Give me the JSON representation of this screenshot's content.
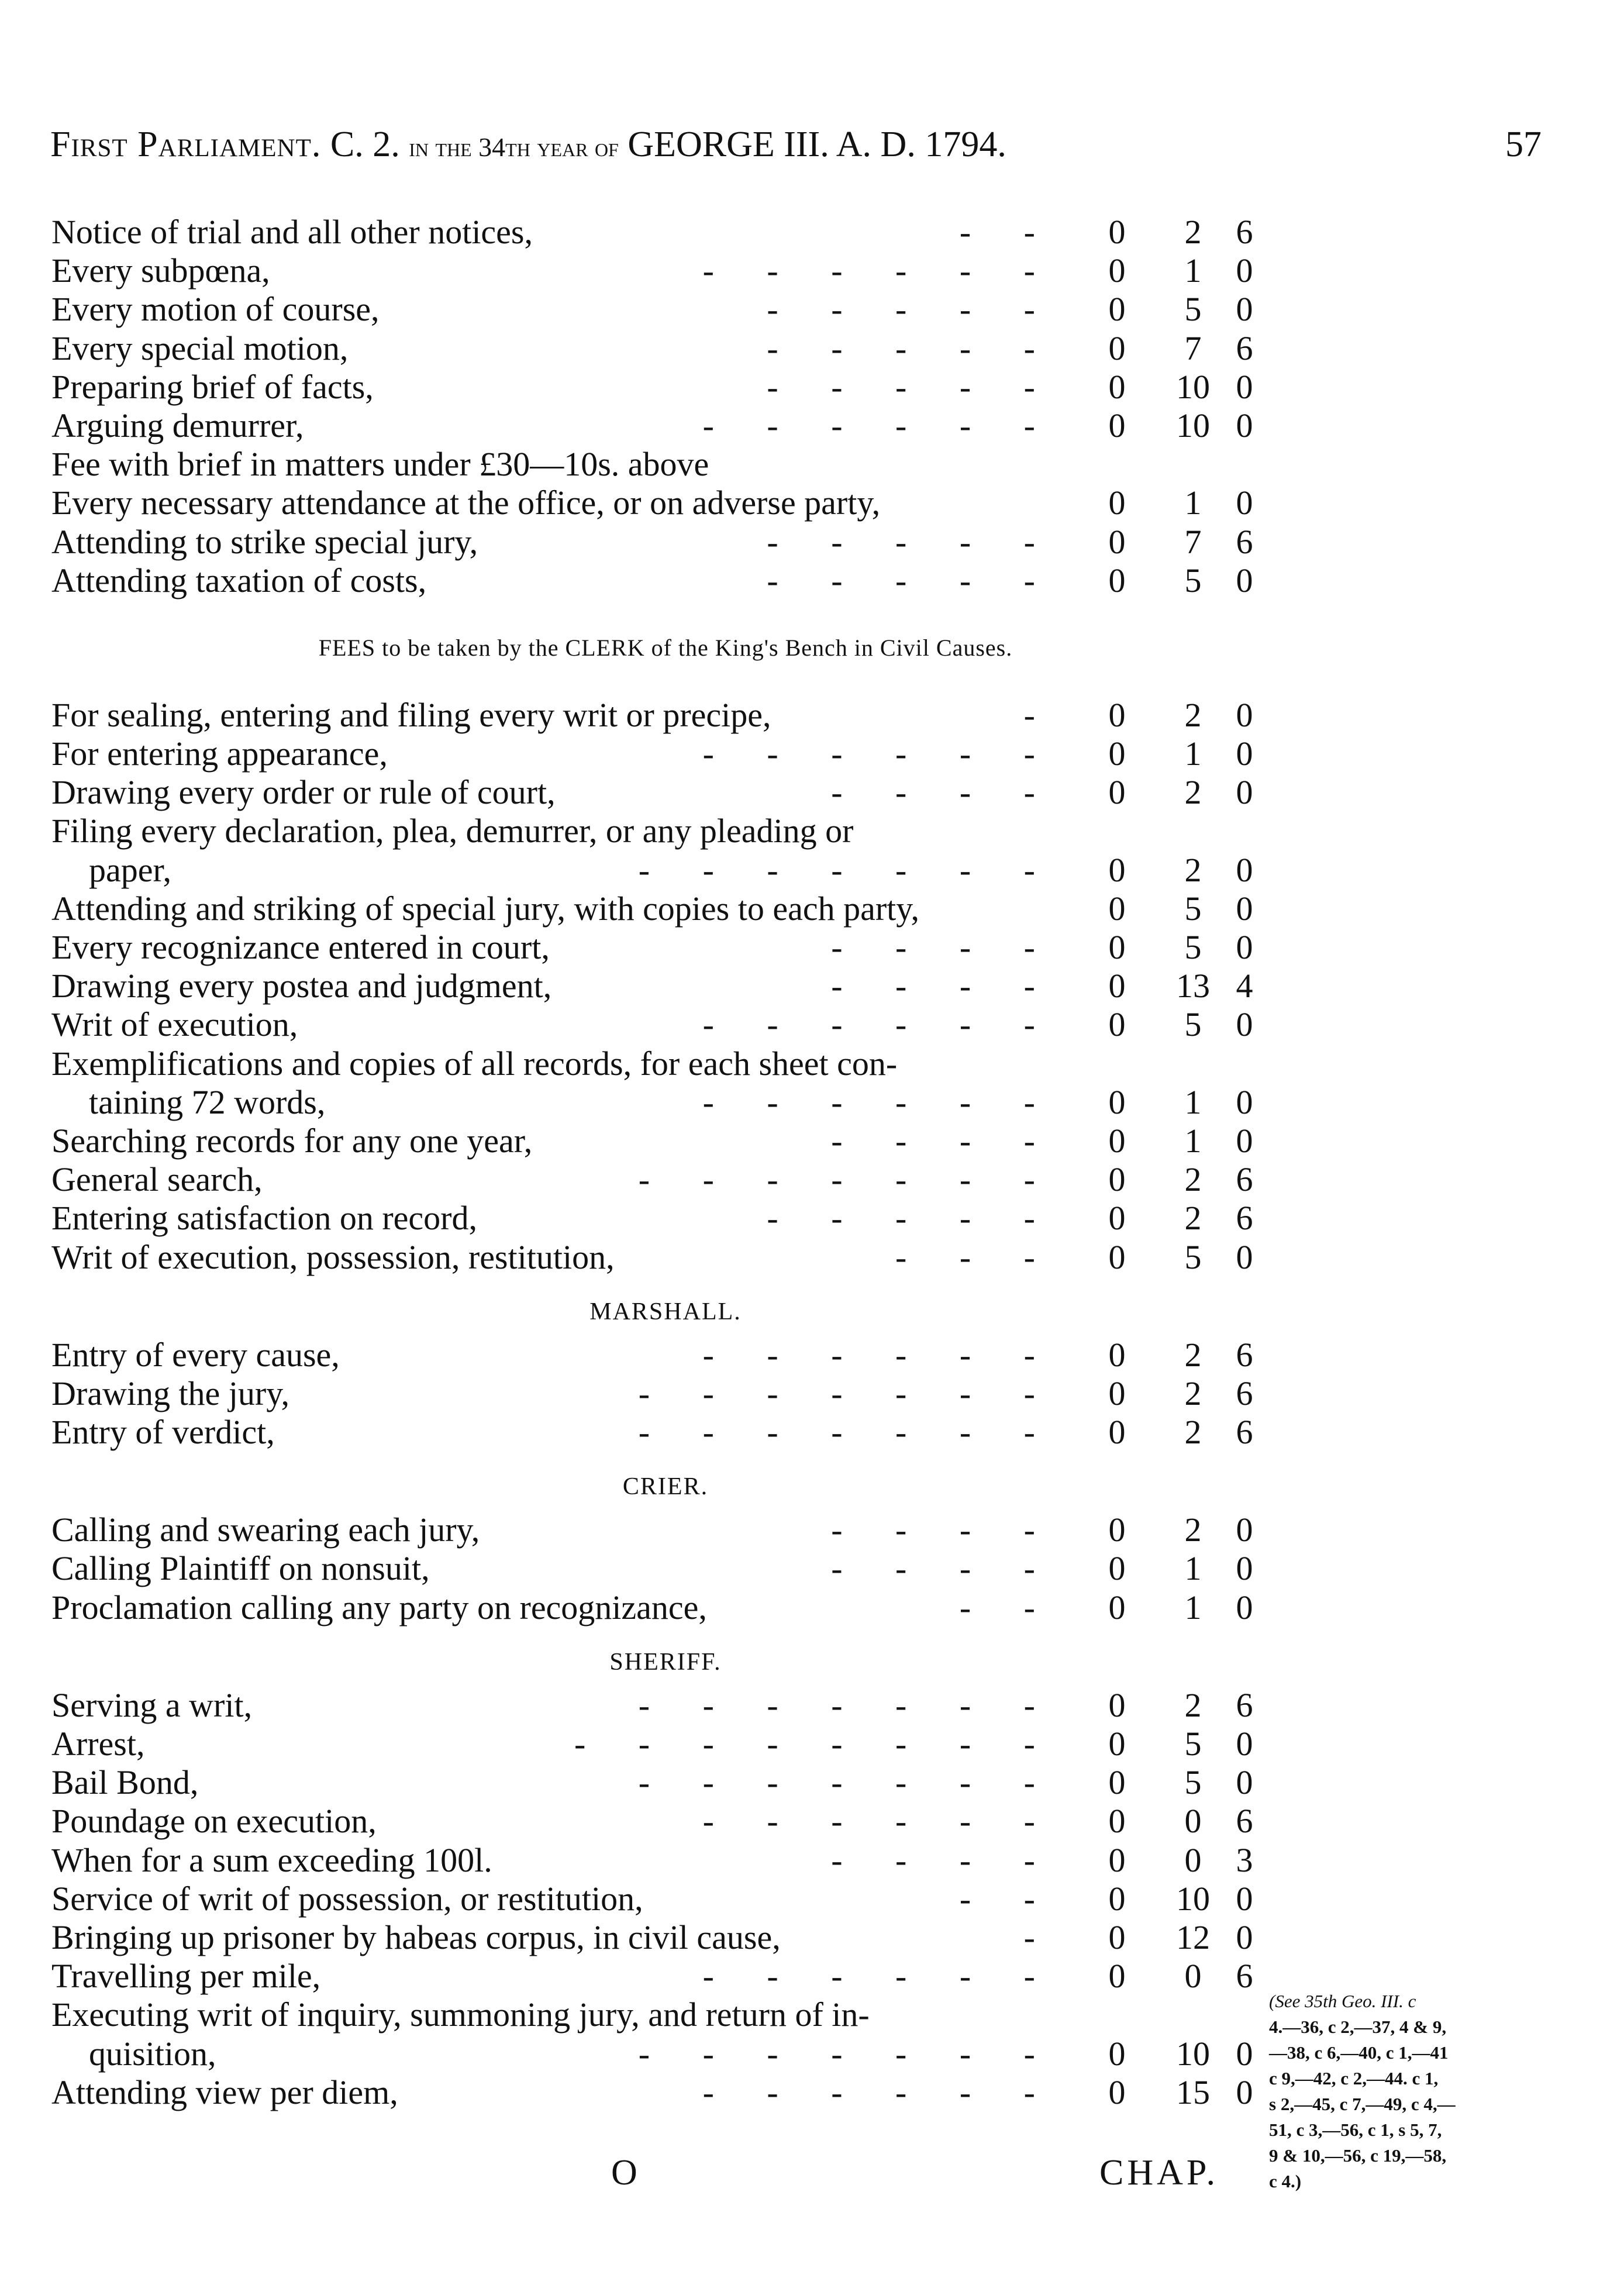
{
  "header": {
    "left": "First Parliament.",
    "chapter": "C. 2.",
    "in_the_year": "in the 34th year of",
    "reign": "GEORGE III. A. D. 1794.",
    "page_number": "57"
  },
  "sections": [
    {
      "heading": "",
      "rows": [
        {
          "label": "Notice of trial and all other notices,",
          "leaders": "- -",
          "l": "0",
          "s": "2",
          "d": "6"
        },
        {
          "label": "Every subpœna,",
          "leaders": "- - - - - -",
          "l": "0",
          "s": "1",
          "d": "0"
        },
        {
          "label": "Every motion of course,",
          "leaders": "- - - - -",
          "l": "0",
          "s": "5",
          "d": "0"
        },
        {
          "label": "Every special motion,",
          "leaders": "- - - - -",
          "l": "0",
          "s": "7",
          "d": "6"
        },
        {
          "label": "Preparing brief of facts,",
          "leaders": "- - - - -",
          "l": "0",
          "s": "10",
          "d": "0"
        },
        {
          "label": "Arguing demurrer,",
          "leaders": "- - - - - -",
          "l": "0",
          "s": "10",
          "d": "0"
        },
        {
          "label": "Fee with brief in matters under £30—10s. above",
          "leaders": "",
          "l": "",
          "s": "",
          "d": ""
        },
        {
          "label": "Every necessary attendance at the office, or on adverse party,",
          "leaders": "",
          "l": "0",
          "s": "1",
          "d": "0"
        },
        {
          "label": "Attending to strike special jury,",
          "leaders": "- - - - -",
          "l": "0",
          "s": "7",
          "d": "6"
        },
        {
          "label": "Attending taxation of costs,",
          "leaders": "- - - - -",
          "l": "0",
          "s": "5",
          "d": "0"
        }
      ]
    },
    {
      "heading": "FEES to be taken by the CLERK of the King's Bench in Civil Causes.",
      "rows": [
        {
          "label": "For sealing, entering and filing every writ or precipe,",
          "leaders": "-",
          "l": "0",
          "s": "2",
          "d": "0"
        },
        {
          "label": "For entering appearance,",
          "leaders": "- - - - - -",
          "l": "0",
          "s": "1",
          "d": "0"
        },
        {
          "label": "Drawing every order or rule of court,",
          "leaders": "- - - -",
          "l": "0",
          "s": "2",
          "d": "0"
        },
        {
          "label": "Filing every declaration, plea, demurrer, or any pleading or",
          "leaders": "",
          "l": "",
          "s": "",
          "d": ""
        },
        {
          "label": "paper,",
          "cont": true,
          "leaders": "- - - - - - -",
          "l": "0",
          "s": "2",
          "d": "0"
        },
        {
          "label": "Attending and striking of special jury, with copies to each party,",
          "leaders": "",
          "l": "0",
          "s": "5",
          "d": "0"
        },
        {
          "label": "Every recognizance entered in court,",
          "leaders": "- - - -",
          "l": "0",
          "s": "5",
          "d": "0"
        },
        {
          "label": "Drawing every postea and judgment,",
          "leaders": "- - - -",
          "l": "0",
          "s": "13",
          "d": "4"
        },
        {
          "label": "Writ of execution,",
          "leaders": "- - - - - -",
          "l": "0",
          "s": "5",
          "d": "0"
        },
        {
          "label": "Exemplifications and copies of all records, for each sheet con-",
          "leaders": "",
          "l": "",
          "s": "",
          "d": ""
        },
        {
          "label": "taining 72 words,",
          "cont": true,
          "leaders": "- - - - - -",
          "l": "0",
          "s": "1",
          "d": "0"
        },
        {
          "label": "Searching records for any one year,",
          "leaders": "- - - -",
          "l": "0",
          "s": "1",
          "d": "0"
        },
        {
          "label": "General search,",
          "leaders": "- - - - - - -",
          "l": "0",
          "s": "2",
          "d": "6"
        },
        {
          "label": "Entering satisfaction on record,",
          "leaders": "- - - - -",
          "l": "0",
          "s": "2",
          "d": "6"
        },
        {
          "label": "Writ of execution, possession, restitution,",
          "leaders": "- - -",
          "l": "0",
          "s": "5",
          "d": "0"
        }
      ]
    },
    {
      "heading": "MARSHALL.",
      "rows": [
        {
          "label": "Entry of every cause,",
          "leaders": "- - - - - -",
          "l": "0",
          "s": "2",
          "d": "6"
        },
        {
          "label": "Drawing the jury,",
          "leaders": "- - - - - - -",
          "l": "0",
          "s": "2",
          "d": "6"
        },
        {
          "label": "Entry of verdict,",
          "leaders": "- - - - - - -",
          "l": "0",
          "s": "2",
          "d": "6"
        }
      ]
    },
    {
      "heading": "CRIER.",
      "rows": [
        {
          "label": "Calling and swearing each jury,",
          "leaders": "- - - -",
          "l": "0",
          "s": "2",
          "d": "0"
        },
        {
          "label": "Calling Plaintiff on nonsuit,",
          "leaders": "- - - -",
          "l": "0",
          "s": "1",
          "d": "0"
        },
        {
          "label": "Proclamation calling any party on recognizance,",
          "leaders": "- -",
          "l": "0",
          "s": "1",
          "d": "0"
        }
      ]
    },
    {
      "heading": "SHERIFF.",
      "rows": [
        {
          "label": "Serving a writ,",
          "leaders": "- - - - - - -",
          "l": "0",
          "s": "2",
          "d": "6"
        },
        {
          "label": "Arrest,",
          "leaders": "- - - - - - - -",
          "l": "0",
          "s": "5",
          "d": "0"
        },
        {
          "label": "Bail Bond,",
          "leaders": "- - - - - - -",
          "l": "0",
          "s": "5",
          "d": "0"
        },
        {
          "label": "Poundage on execution,",
          "leaders": "- - - - - -",
          "l": "0",
          "s": "0",
          "d": "6"
        },
        {
          "label": "When for a sum exceeding 100l.",
          "leaders": "- - - -",
          "l": "0",
          "s": "0",
          "d": "3"
        },
        {
          "label": "Service of writ of possession, or restitution,",
          "leaders": "- -",
          "l": "0",
          "s": "10",
          "d": "0"
        },
        {
          "label": "Bringing up prisoner by habeas corpus, in civil cause,",
          "leaders": "-",
          "l": "0",
          "s": "12",
          "d": "0"
        },
        {
          "label": "Travelling per mile,",
          "leaders": "- - - - - -",
          "l": "0",
          "s": "0",
          "d": "6"
        },
        {
          "label": "Executing writ of inquiry, summoning jury, and return of in-",
          "leaders": "",
          "l": "",
          "s": "",
          "d": ""
        },
        {
          "label": "quisition,",
          "cont": true,
          "leaders": "- - - - - - -",
          "l": "0",
          "s": "10",
          "d": "0"
        },
        {
          "label": "Attending view per diem,",
          "leaders": "- - - - - -",
          "l": "0",
          "s": "15",
          "d": "0"
        }
      ]
    }
  ],
  "margin_note": {
    "intro": "(See 35th Geo. III. c",
    "lines": [
      "4.—36, c 2,—37, 4 & 9,",
      "—38, c 6,—40, c 1,—41",
      "c 9,—42, c 2,—44. c 1,",
      "s 2,—45, c 7,—49, c 4,—",
      "51, c 3,—56, c 1, s 5, 7,",
      "9 & 10,—56, c 19,—58,",
      "c 4.)"
    ]
  },
  "footer": {
    "signature": "O",
    "catchword": "CHAP."
  }
}
